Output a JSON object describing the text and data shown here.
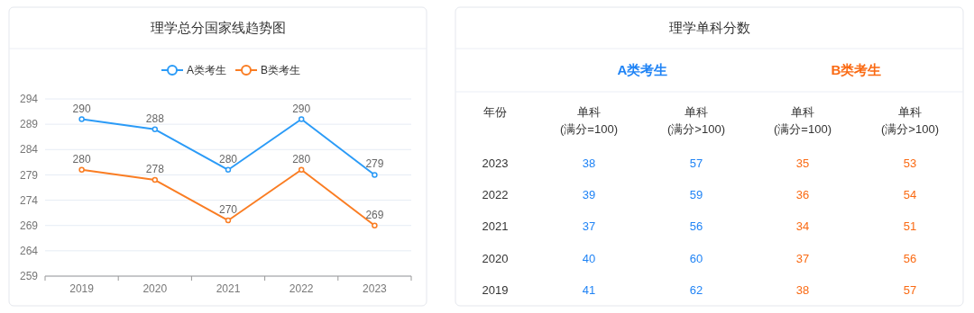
{
  "chart_data": [
    {
      "type": "line",
      "title": "理学总分国家线趋势图",
      "categories": [
        "2019",
        "2020",
        "2021",
        "2022",
        "2023"
      ],
      "series": [
        {
          "name": "A类考生",
          "color": "#2b9bf7",
          "values": [
            290,
            288,
            280,
            290,
            279
          ]
        },
        {
          "name": "B类考生",
          "color": "#fa7d23",
          "values": [
            280,
            278,
            270,
            280,
            269
          ]
        }
      ],
      "ylim": [
        259,
        294
      ],
      "yticks": [
        259,
        264,
        269,
        274,
        279,
        284,
        289,
        294
      ],
      "grid": "y",
      "legend": "top",
      "marker": "circle",
      "data_labels": true
    },
    {
      "type": "heatmap",
      "title": "理学单科分数",
      "ylabel": "年份",
      "colors": [
        "#1f83f5",
        "#fa6a13"
      ],
      "annotations": [
        "A类考生",
        "B类考生"
      ],
      "categories": [
        "单科\n(满分=100)",
        "单科\n(满分>100)",
        "单科\n(满分=100)",
        "单科\n(满分>100)"
      ],
      "y_categories": [
        "2023",
        "2022",
        "2021",
        "2020",
        "2019"
      ],
      "cells": [
        [
          38,
          57,
          35,
          53
        ],
        [
          39,
          59,
          36,
          54
        ],
        [
          37,
          56,
          34,
          51
        ],
        [
          40,
          60,
          37,
          56
        ],
        [
          41,
          62,
          38,
          57
        ]
      ],
      "data_labels": true
    }
  ]
}
